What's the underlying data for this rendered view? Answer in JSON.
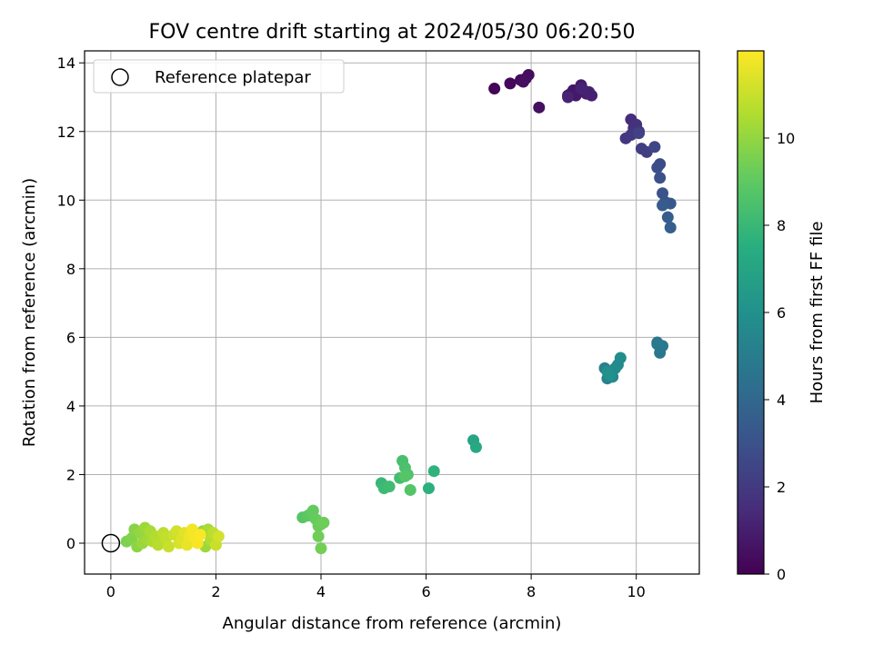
{
  "chart_data": {
    "type": "scatter",
    "title": "FOV centre drift starting at 2024/05/30 06:20:50",
    "xlabel": "Angular distance from reference (arcmin)",
    "ylabel": "Rotation from reference (arcmin)",
    "xlim": [
      -0.5,
      11.2
    ],
    "ylim": [
      -0.9,
      14.35
    ],
    "xticks": [
      0,
      2,
      4,
      6,
      8,
      10
    ],
    "yticks": [
      0,
      2,
      4,
      6,
      8,
      10,
      12,
      14
    ],
    "grid": true,
    "legend": {
      "position": "upper-left",
      "entries": [
        "Reference platepar"
      ]
    },
    "reference_point": {
      "x": 0,
      "y": 0
    },
    "colorbar": {
      "label": "Hours from first FF file",
      "colormap": "viridis",
      "range": [
        0,
        12
      ],
      "ticks": [
        0,
        2,
        4,
        6,
        8,
        10
      ]
    },
    "series": [
      {
        "x": [
          7.3,
          7.6,
          7.8,
          7.9,
          7.95,
          7.85,
          8.15,
          8.7,
          8.75,
          8.8,
          8.85,
          8.95,
          9.0,
          9.05,
          9.1,
          9.15,
          8.95,
          8.7,
          9.9,
          9.95,
          10.0,
          10.05,
          9.8,
          9.9,
          10.1,
          10.2,
          10.05,
          10.35,
          10.45,
          10.4,
          10.45,
          10.5,
          10.55,
          10.65,
          10.5,
          10.6,
          10.65,
          9.4,
          9.45,
          9.5,
          9.55,
          9.6,
          9.65,
          9.7,
          9.45,
          9.5,
          10.4,
          10.45,
          10.5,
          10.4,
          6.9,
          6.95,
          5.15,
          5.2,
          5.3,
          5.5,
          5.55,
          5.6,
          5.65,
          5.7,
          5.6,
          6.05,
          6.15,
          3.65,
          3.75,
          3.8,
          3.85,
          3.9,
          3.95,
          4.0,
          4.05,
          3.95,
          4.0,
          0.3,
          0.4,
          0.45,
          0.5,
          0.55,
          0.6,
          0.65,
          0.7,
          0.75,
          0.8,
          0.85,
          0.9,
          1.0,
          1.05,
          1.1,
          1.2,
          1.25,
          1.3,
          1.35,
          1.4,
          1.45,
          1.5,
          1.55,
          1.6,
          1.65,
          1.7,
          1.75,
          1.8,
          1.85,
          1.9,
          1.95,
          2.0,
          2.05
        ],
        "y": [
          13.25,
          13.4,
          13.5,
          13.55,
          13.65,
          13.45,
          12.7,
          13.05,
          13.1,
          13.2,
          13.05,
          13.35,
          13.2,
          13.1,
          13.15,
          13.05,
          13.25,
          13.0,
          12.35,
          12.1,
          12.2,
          12.0,
          11.8,
          11.9,
          11.5,
          11.4,
          11.95,
          11.55,
          11.05,
          10.95,
          10.65,
          10.2,
          9.95,
          9.9,
          9.85,
          9.5,
          9.2,
          5.1,
          4.8,
          4.95,
          4.85,
          5.1,
          5.2,
          5.4,
          5.0,
          4.9,
          5.85,
          5.55,
          5.75,
          5.8,
          3.0,
          2.8,
          1.75,
          1.6,
          1.65,
          1.9,
          2.4,
          2.2,
          2.0,
          1.55,
          1.95,
          1.6,
          2.1,
          0.75,
          0.8,
          0.85,
          0.95,
          0.7,
          0.5,
          0.55,
          0.6,
          0.2,
          -0.15,
          0.05,
          0.15,
          0.4,
          -0.1,
          0.3,
          0.0,
          0.45,
          0.1,
          0.35,
          0.05,
          0.2,
          -0.05,
          0.3,
          0.15,
          -0.1,
          0.25,
          0.35,
          0.0,
          0.1,
          0.3,
          -0.05,
          0.2,
          0.4,
          0.15,
          0.0,
          0.25,
          0.35,
          -0.1,
          0.4,
          0.1,
          0.3,
          -0.05,
          0.2
        ],
        "hours": [
          0.1,
          0.2,
          0.3,
          0.35,
          0.4,
          0.45,
          0.5,
          0.6,
          0.7,
          0.75,
          0.8,
          0.85,
          0.9,
          1.0,
          1.05,
          1.1,
          1.15,
          1.2,
          1.5,
          1.6,
          1.7,
          1.8,
          1.9,
          2.0,
          2.1,
          2.2,
          2.3,
          2.5,
          2.7,
          2.8,
          2.9,
          3.1,
          3.2,
          3.3,
          3.4,
          3.5,
          3.6,
          5.2,
          5.3,
          5.4,
          5.5,
          5.6,
          5.7,
          5.8,
          5.9,
          6.0,
          4.6,
          4.7,
          4.8,
          4.9,
          7.0,
          7.2,
          8.0,
          8.1,
          8.2,
          8.3,
          8.4,
          8.5,
          8.6,
          8.7,
          8.75,
          7.6,
          7.7,
          8.8,
          8.9,
          9.0,
          9.1,
          9.15,
          9.2,
          9.25,
          9.3,
          9.35,
          9.4,
          9.6,
          9.7,
          9.8,
          9.9,
          10.0,
          10.1,
          10.2,
          10.3,
          10.4,
          10.5,
          10.6,
          10.7,
          10.8,
          10.9,
          11.0,
          11.1,
          11.2,
          11.3,
          11.4,
          11.5,
          11.6,
          11.7,
          11.8,
          11.85,
          11.9,
          11.95,
          10.0,
          10.2,
          10.4,
          10.6,
          10.8,
          11.0,
          11.2
        ]
      }
    ]
  }
}
